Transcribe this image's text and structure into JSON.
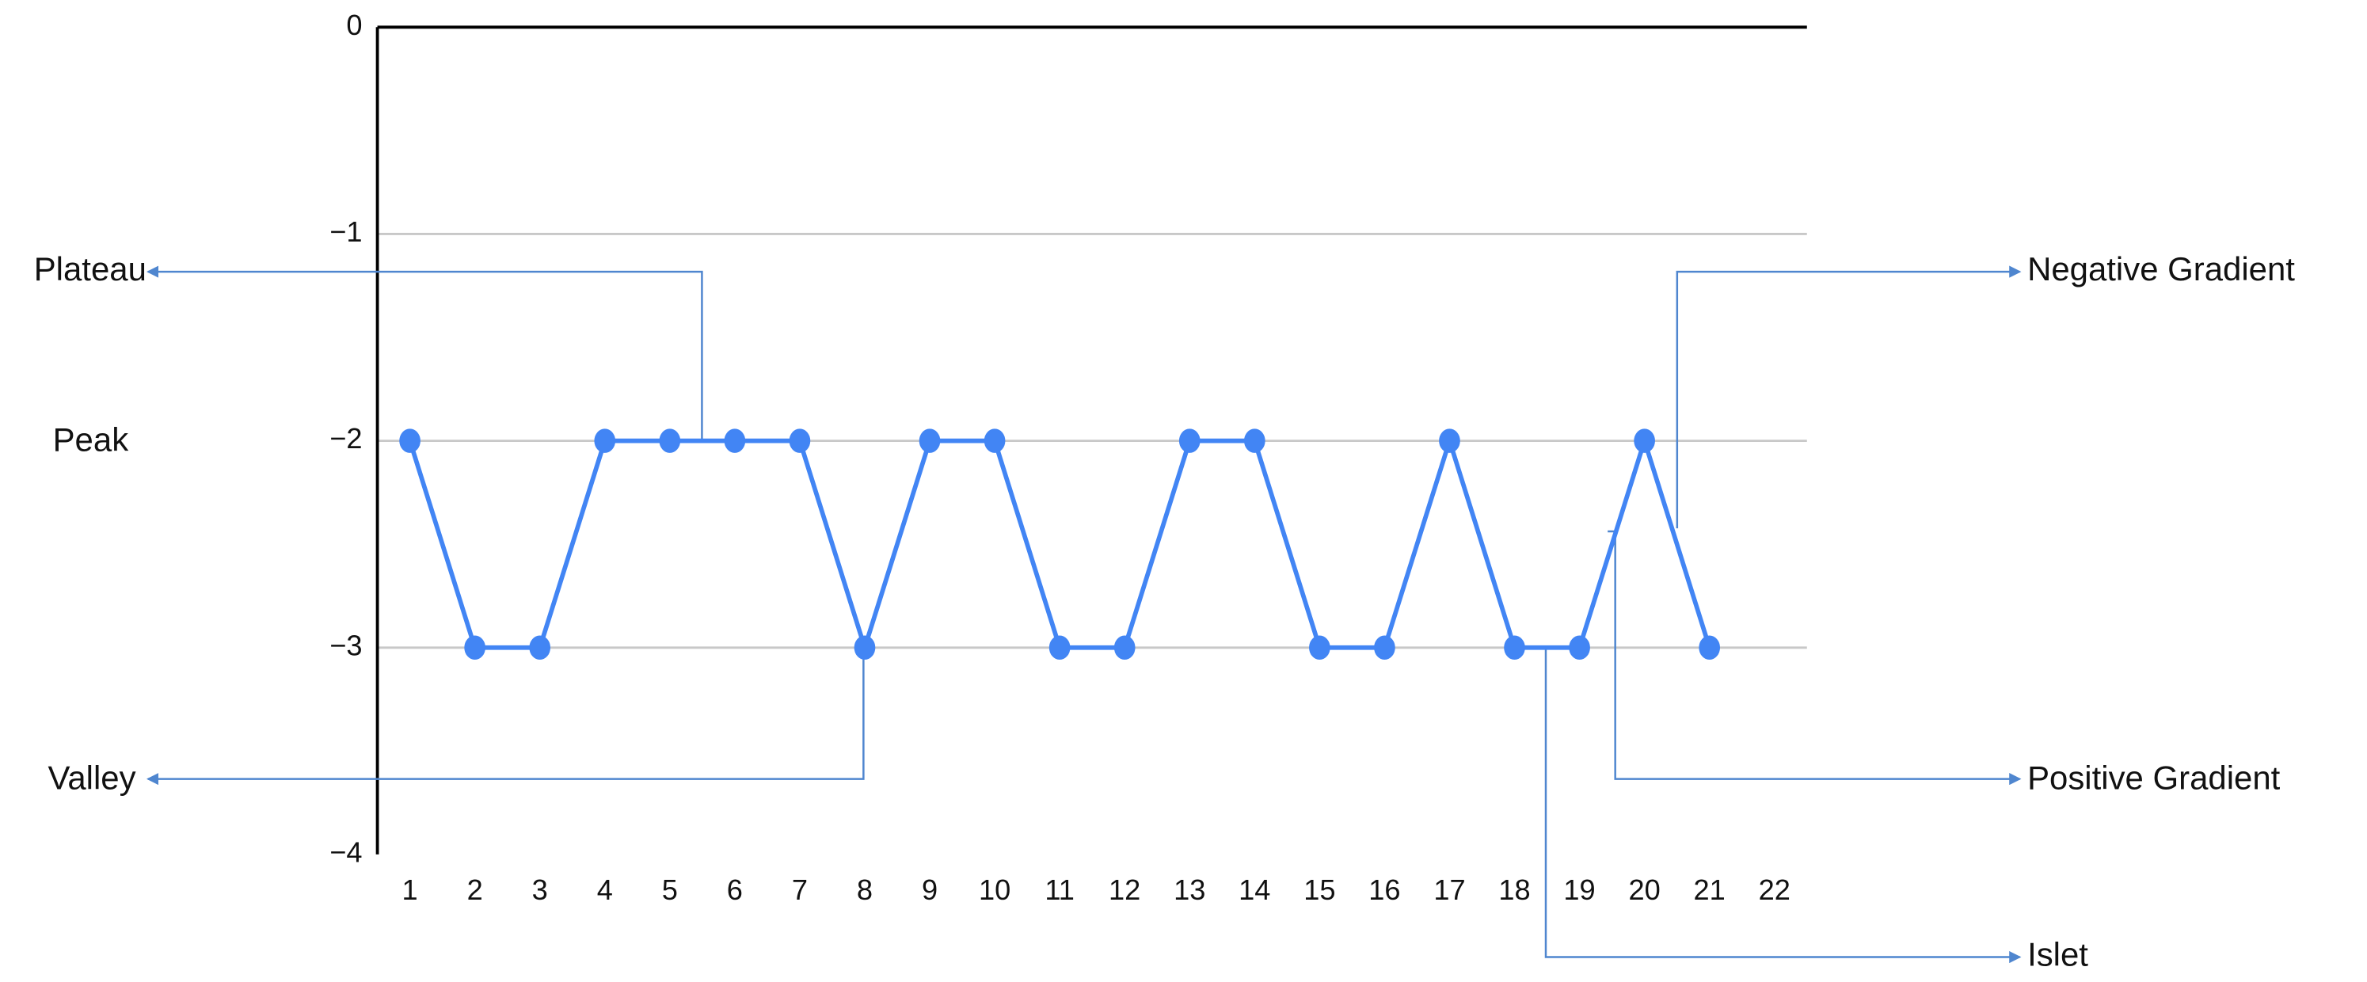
{
  "chart_data": {
    "type": "line",
    "x": [
      1,
      2,
      3,
      4,
      5,
      6,
      7,
      8,
      9,
      10,
      11,
      12,
      13,
      14,
      15,
      16,
      17,
      18,
      19,
      20,
      21,
      22
    ],
    "series": [
      {
        "color": "#4285f4",
        "values": [
          -2,
          -3,
          -3,
          -2,
          -2,
          -2,
          -2,
          -3,
          -2,
          -2,
          -3,
          -3,
          -2,
          -2,
          -3,
          -3,
          -2,
          -3,
          -3,
          -2,
          -3,
          null
        ]
      }
    ],
    "xlim": [
      0.5,
      22.5
    ],
    "xticks": [
      1,
      2,
      3,
      4,
      5,
      6,
      7,
      8,
      9,
      10,
      11,
      12,
      13,
      14,
      15,
      16,
      17,
      18,
      19,
      20,
      21,
      22
    ],
    "ylim": [
      -4,
      0
    ],
    "yticks": [
      {
        "value": -4,
        "label": "−4"
      },
      {
        "value": -3,
        "label": "−3"
      },
      {
        "value": -2,
        "label": "−2"
      },
      {
        "value": -1,
        "label": "−1"
      },
      0
    ],
    "grid": true,
    "annotations": [
      "Plateau",
      "Peak",
      "Valley",
      "Negative Gradient",
      "Positive Gradient",
      "Islet"
    ]
  }
}
